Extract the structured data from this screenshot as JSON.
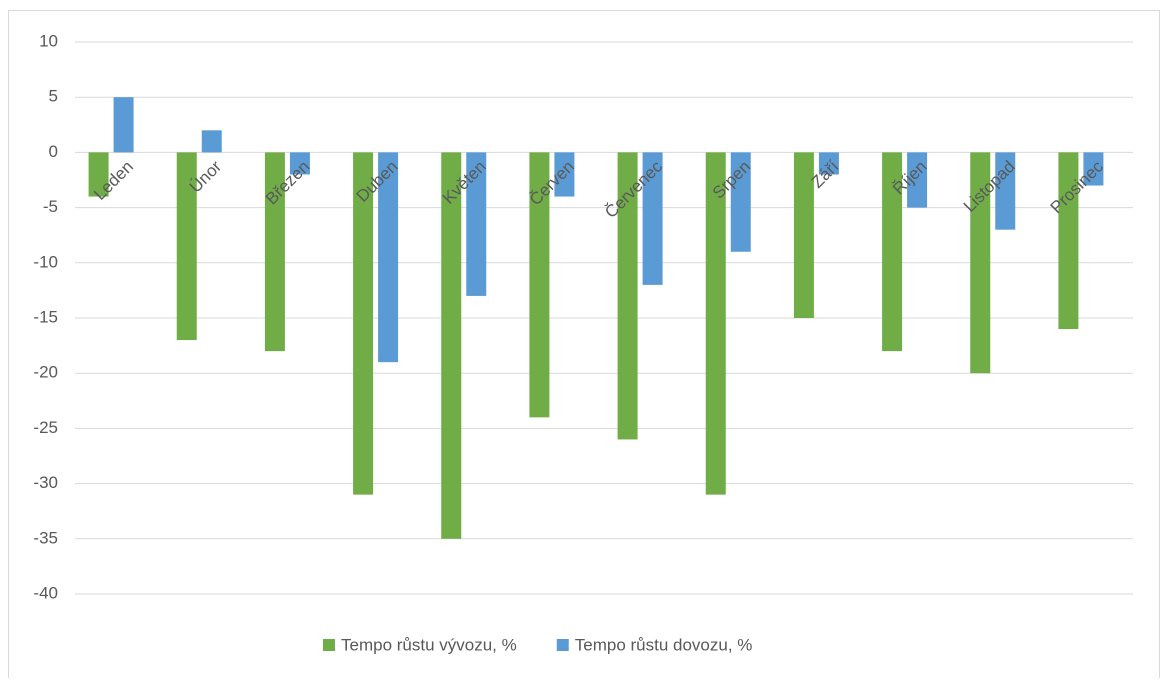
{
  "chart_data": {
    "type": "bar",
    "categories": [
      "Leden",
      "Únor",
      "Březen",
      "Duben",
      "Květen",
      "Červen",
      "Červenec",
      "Srpen",
      "Září",
      "Říjen",
      "Listopad",
      "Prosinec"
    ],
    "series": [
      {
        "name": "Tempo růstu vývozu, %",
        "color": "#70ad47",
        "values": [
          -4,
          -17,
          -18,
          -31,
          -35,
          -24,
          -26,
          -31,
          -15,
          -18,
          -20,
          -16
        ]
      },
      {
        "name": "Tempo růstu dovozu, %",
        "color": "#5b9bd5",
        "values": [
          5,
          2,
          -2,
          -19,
          -13,
          -4,
          -12,
          -9,
          -2,
          -5,
          -7,
          -3
        ]
      }
    ],
    "ylim": [
      -40,
      10
    ],
    "yticks": [
      -40,
      -35,
      -30,
      -25,
      -20,
      -15,
      -10,
      -5,
      0,
      5,
      10
    ],
    "grid": true,
    "legend": "bottom"
  }
}
